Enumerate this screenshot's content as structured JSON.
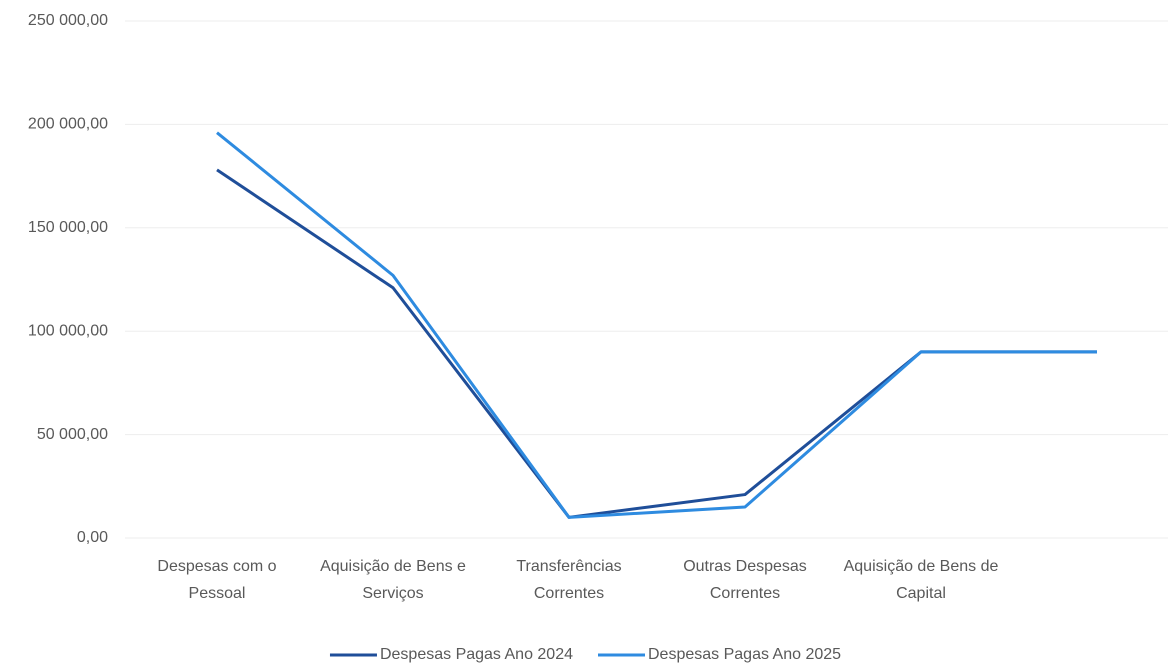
{
  "chart_data": {
    "type": "line",
    "categories": [
      "Despesas com o Pessoal",
      "Aquisição de Bens e Serviços",
      "Transferências Correntes",
      "Outras Despesas Correntes",
      "Aquisição de Bens de Capital",
      null
    ],
    "series": [
      {
        "name": "Despesas Pagas Ano 2024",
        "color": "#1f4e99",
        "values": [
          178000,
          121000,
          10000,
          21000,
          90000,
          90000
        ]
      },
      {
        "name": "Despesas Pagas Ano 2025",
        "color": "#2e8be0",
        "values": [
          196000,
          127000,
          10000,
          15000,
          90000,
          90000
        ]
      }
    ],
    "ylim": [
      0,
      250000
    ],
    "yticks": [
      {
        "value": 0,
        "label": "0,00"
      },
      {
        "value": 50000,
        "label": "50 000,00"
      },
      {
        "value": 100000,
        "label": "100 000,00"
      },
      {
        "value": 150000,
        "label": "150 000,00"
      },
      {
        "value": 200000,
        "label": "200 000,00"
      },
      {
        "value": 250000,
        "label": "250 000,00"
      }
    ],
    "grid": true,
    "legend": "bottom"
  }
}
